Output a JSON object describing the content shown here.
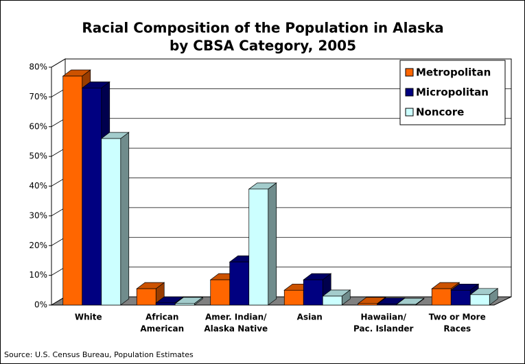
{
  "chart_data": {
    "type": "bar3d",
    "title": [
      "Racial Composition of the Population in Alaska",
      "by CBSA Category, 2005"
    ],
    "categories": [
      [
        "White"
      ],
      [
        "African",
        "American"
      ],
      [
        "Amer. Indian/",
        "Alaska Native"
      ],
      [
        "Asian"
      ],
      [
        "Hawaiian/",
        "Pac. Islander"
      ],
      [
        "Two or More",
        "Races"
      ]
    ],
    "series": [
      {
        "name": "Metropolitan",
        "color": "#ff6600",
        "values": [
          77,
          5.5,
          8.5,
          5,
          0.5,
          5.5
        ]
      },
      {
        "name": "Micropolitan",
        "color": "#000080",
        "values": [
          73,
          0.7,
          14.5,
          8.5,
          0.3,
          5
        ]
      },
      {
        "name": "Noncore",
        "color": "#ccffff",
        "values": [
          56,
          0.5,
          39,
          3,
          0.2,
          3.5
        ]
      }
    ],
    "ylim": [
      0,
      80
    ],
    "yticks": [
      {
        "value": 0,
        "label": "0%"
      },
      {
        "value": 10,
        "label": "10%"
      },
      {
        "value": 20,
        "label": "20%"
      },
      {
        "value": 30,
        "label": "30%"
      },
      {
        "value": 40,
        "label": "40%"
      },
      {
        "value": 50,
        "label": "50%"
      },
      {
        "value": 60,
        "label": "60%"
      },
      {
        "value": 70,
        "label": "70%"
      },
      {
        "value": 80,
        "label": "80%"
      }
    ],
    "grid": true,
    "legend": "top-right",
    "source": "Source: U.S. Census Bureau, Population Estimates"
  }
}
